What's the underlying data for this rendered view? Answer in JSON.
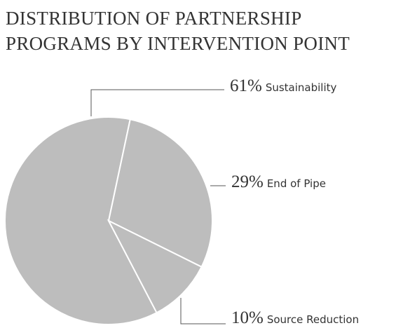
{
  "chart_data": {
    "type": "pie",
    "title": "DISTRIBUTION OF PARTNERSHIP PROGRAMS BY INTERVENTION POINT",
    "categories": [
      "Sustainability",
      "End of Pipe",
      "Source Reduction"
    ],
    "values": [
      61,
      29,
      10
    ],
    "value_labels": [
      "61%",
      "29%",
      "10%"
    ],
    "color": "#bdbdbd"
  }
}
